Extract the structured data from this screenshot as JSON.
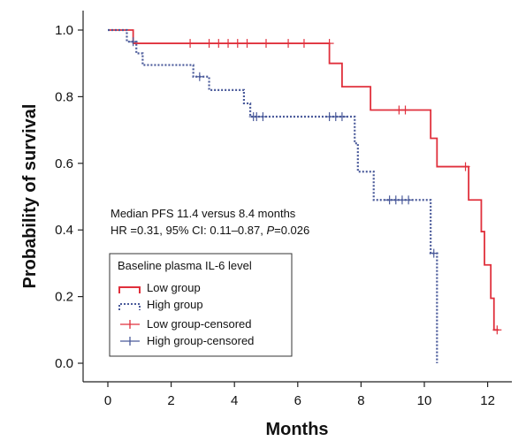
{
  "chart_data": {
    "type": "line",
    "chart_kind": "kaplan-meier survival curve",
    "xlabel": "Months",
    "ylabel": "Probability of survival",
    "xlim": [
      0,
      12.6
    ],
    "ylim": [
      0,
      1.05
    ],
    "x_ticks": [
      "0",
      "2",
      "4",
      "6",
      "8",
      "10",
      "12"
    ],
    "y_ticks": [
      "0.0",
      "0.2",
      "0.4",
      "0.6",
      "0.8",
      "1.0"
    ],
    "grid": false,
    "annotation": {
      "line1": "Median PFS 11.4 versus 8.4 months",
      "line2_prefix": "HR =0.31, 95% CI: 0.11–0.87, ",
      "line2_p": "P",
      "line2_suffix": "=0.026"
    },
    "legend": {
      "title": "Baseline plasma IL-6 level",
      "placement": "lower-left",
      "entries": [
        {
          "label": "Low group",
          "style": "step-solid",
          "color": "#e0303c"
        },
        {
          "label": "High group",
          "style": "step-dotted",
          "color": "#4a5a9a"
        },
        {
          "label": "Low group-censored",
          "style": "cross",
          "color": "#e0303c"
        },
        {
          "label": "High group-censored",
          "style": "cross",
          "color": "#4a5a9a"
        }
      ]
    },
    "series": [
      {
        "name": "Low group",
        "color": "#e0303c",
        "line_style": "solid",
        "steps": [
          [
            0,
            1.0
          ],
          [
            0.8,
            0.96
          ],
          [
            7.0,
            0.9
          ],
          [
            7.4,
            0.83
          ],
          [
            8.3,
            0.76
          ],
          [
            10.2,
            0.675
          ],
          [
            10.4,
            0.59
          ],
          [
            11.4,
            0.49
          ],
          [
            11.8,
            0.395
          ],
          [
            11.9,
            0.295
          ],
          [
            12.1,
            0.195
          ],
          [
            12.2,
            0.1
          ]
        ],
        "end_x": 12.35,
        "censored": [
          [
            2.6,
            0.96
          ],
          [
            3.2,
            0.96
          ],
          [
            3.5,
            0.96
          ],
          [
            3.8,
            0.96
          ],
          [
            4.1,
            0.96
          ],
          [
            4.4,
            0.96
          ],
          [
            5.0,
            0.96
          ],
          [
            5.7,
            0.96
          ],
          [
            6.2,
            0.96
          ],
          [
            7.0,
            0.96
          ],
          [
            9.2,
            0.76
          ],
          [
            9.4,
            0.76
          ],
          [
            11.3,
            0.59
          ],
          [
            12.3,
            0.1
          ]
        ]
      },
      {
        "name": "High group",
        "color": "#4a5a9a",
        "line_style": "dotted",
        "steps": [
          [
            0,
            1.0
          ],
          [
            0.6,
            0.965
          ],
          [
            0.9,
            0.93
          ],
          [
            1.1,
            0.895
          ],
          [
            2.7,
            0.86
          ],
          [
            3.2,
            0.82
          ],
          [
            4.3,
            0.78
          ],
          [
            4.5,
            0.74
          ],
          [
            7.8,
            0.66
          ],
          [
            7.9,
            0.575
          ],
          [
            8.4,
            0.49
          ],
          [
            10.2,
            0.33
          ],
          [
            10.4,
            0.0
          ]
        ],
        "end_x": 10.4,
        "censored": [
          [
            0.8,
            0.965
          ],
          [
            2.9,
            0.86
          ],
          [
            4.6,
            0.74
          ],
          [
            4.7,
            0.74
          ],
          [
            4.9,
            0.74
          ],
          [
            7.0,
            0.74
          ],
          [
            7.2,
            0.74
          ],
          [
            7.4,
            0.74
          ],
          [
            8.9,
            0.49
          ],
          [
            9.1,
            0.49
          ],
          [
            9.3,
            0.49
          ],
          [
            9.5,
            0.49
          ],
          [
            10.3,
            0.33
          ]
        ]
      }
    ]
  }
}
